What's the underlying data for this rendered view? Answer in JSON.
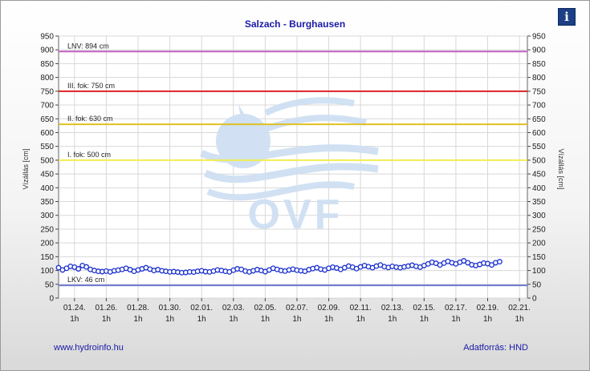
{
  "chart_data": {
    "type": "line",
    "title": "Salzach - Burghausen",
    "ylabel_left": "Vízállás [cm]",
    "ylabel_right": "Vízállás [cm]",
    "ylim": [
      0,
      950
    ],
    "ytick_step": 50,
    "xlim": [
      0,
      29.5
    ],
    "xticks": [
      {
        "x": 1,
        "date": "01.24.",
        "time": "1h"
      },
      {
        "x": 3,
        "date": "01.26.",
        "time": "1h"
      },
      {
        "x": 5,
        "date": "01.28.",
        "time": "1h"
      },
      {
        "x": 7,
        "date": "01.30.",
        "time": "1h"
      },
      {
        "x": 9,
        "date": "02.01.",
        "time": "1h"
      },
      {
        "x": 11,
        "date": "02.03.",
        "time": "1h"
      },
      {
        "x": 13,
        "date": "02.05.",
        "time": "1h"
      },
      {
        "x": 15,
        "date": "02.07.",
        "time": "1h"
      },
      {
        "x": 17,
        "date": "02.09.",
        "time": "1h"
      },
      {
        "x": 19,
        "date": "02.11.",
        "time": "1h"
      },
      {
        "x": 21,
        "date": "02.13.",
        "time": "1h"
      },
      {
        "x": 23,
        "date": "02.15.",
        "time": "1h"
      },
      {
        "x": 25,
        "date": "02.17.",
        "time": "1h"
      },
      {
        "x": 27,
        "date": "02.19.",
        "time": "1h"
      },
      {
        "x": 29,
        "date": "02.21.",
        "time": "1h"
      }
    ],
    "thresholds": [
      {
        "label": "LNV: 894 cm",
        "value": 894,
        "color": "#c060c0"
      },
      {
        "label": "III. fok: 750 cm",
        "value": 750,
        "color": "#dd2222"
      },
      {
        "label": "II. fok: 630 cm",
        "value": 630,
        "color": "#e0c020"
      },
      {
        "label": "I. fok: 500 cm",
        "value": 500,
        "color": "#f2ee50"
      },
      {
        "label": "LKV: 46 cm",
        "value": 46,
        "color": "#6a7ad0"
      }
    ],
    "series": [
      {
        "color": "#1a2fd0",
        "x_start": 0,
        "x_step": 0.25,
        "values": [
          110,
          102,
          108,
          115,
          112,
          106,
          118,
          113,
          104,
          100,
          97,
          96,
          98,
          95,
          99,
          101,
          104,
          108,
          103,
          97,
          102,
          106,
          110,
          105,
          100,
          103,
          99,
          97,
          95,
          96,
          94,
          92,
          93,
          95,
          94,
          97,
          99,
          96,
          95,
          98,
          102,
          100,
          97,
          95,
          101,
          106,
          104,
          98,
          95,
          99,
          103,
          100,
          96,
          102,
          108,
          104,
          100,
          98,
          102,
          105,
          101,
          99,
          97,
          103,
          107,
          110,
          105,
          102,
          108,
          112,
          109,
          104,
          110,
          116,
          112,
          107,
          113,
          118,
          114,
          110,
          116,
          120,
          114,
          111,
          115,
          112,
          110,
          113,
          116,
          119,
          115,
          112,
          118,
          124,
          130,
          126,
          120,
          127,
          133,
          128,
          124,
          130,
          135,
          128,
          121,
          118,
          122,
          127,
          125,
          120,
          128,
          132
        ]
      }
    ]
  },
  "footer": {
    "left": "www.hydroinfo.hu",
    "right": "Adatforrás: HND"
  },
  "watermark": {
    "text": "OVF"
  }
}
